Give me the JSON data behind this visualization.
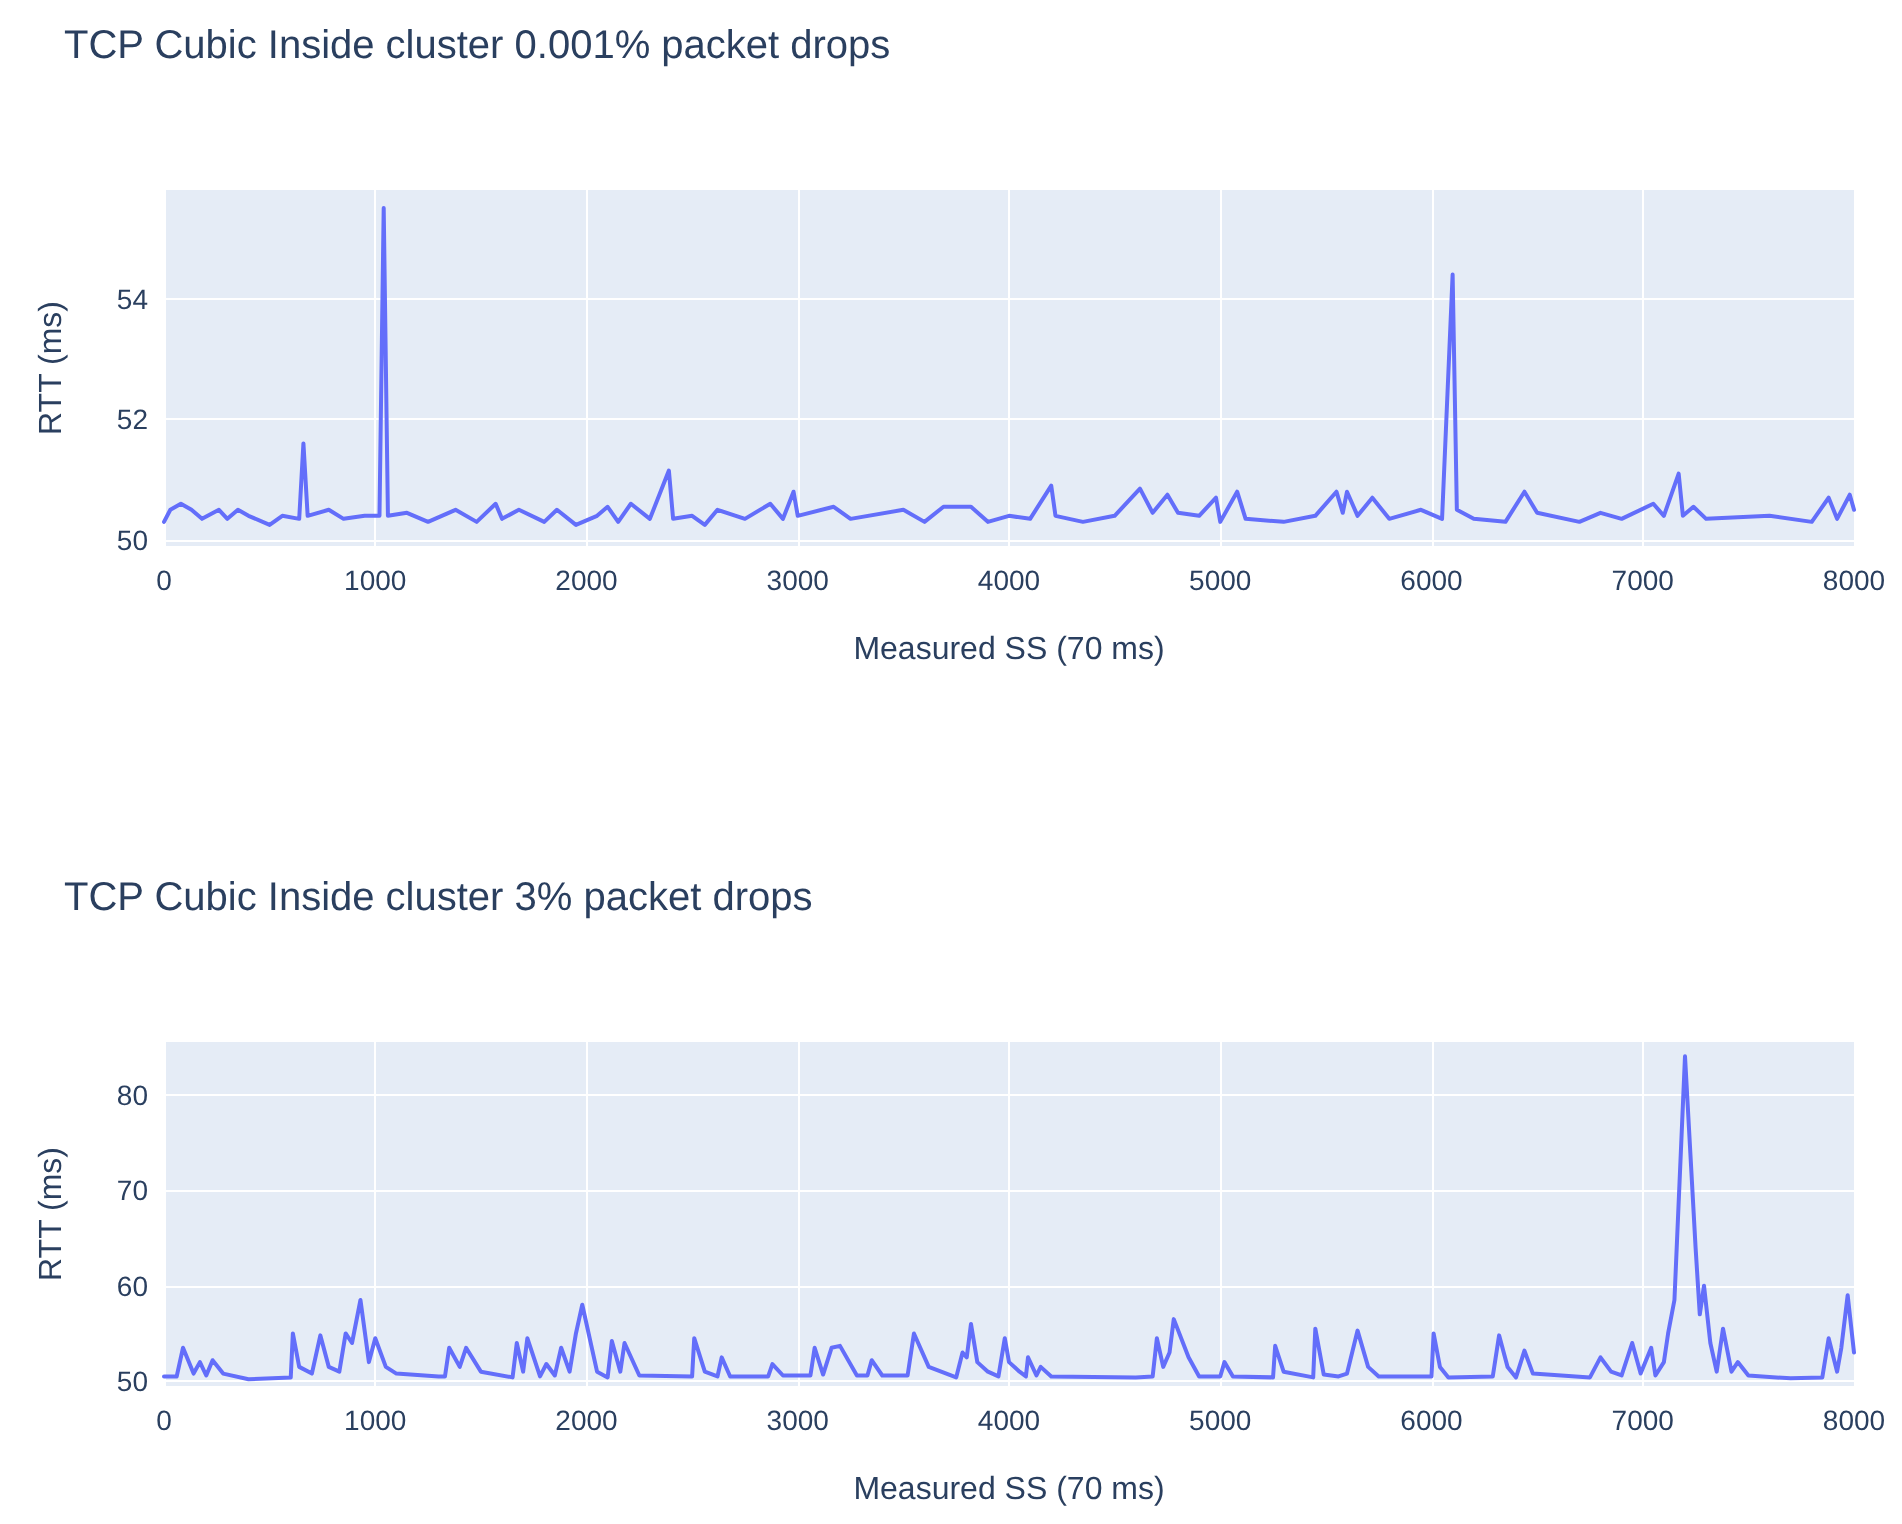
{
  "chart_data": [
    {
      "type": "line",
      "title": "TCP Cubic Inside cluster 0.001% packet drops",
      "xlabel": "Measured SS (70 ms)",
      "ylabel": "RTT (ms)",
      "xlim": [
        0,
        8000
      ],
      "xticks": [
        0,
        1000,
        2000,
        3000,
        4000,
        5000,
        6000,
        7000,
        8000
      ],
      "ylim": [
        49.9,
        55.8
      ],
      "yticks": [
        50,
        52,
        54
      ],
      "grid": true,
      "marker": "none",
      "line_style": "solid",
      "x": [
        0,
        30,
        80,
        130,
        180,
        260,
        300,
        350,
        400,
        500,
        560,
        640,
        660,
        680,
        780,
        850,
        950,
        1020,
        1040,
        1060,
        1150,
        1250,
        1380,
        1480,
        1570,
        1600,
        1680,
        1800,
        1860,
        1950,
        2050,
        2100,
        2150,
        2210,
        2300,
        2390,
        2410,
        2500,
        2560,
        2620,
        2750,
        2870,
        2930,
        2980,
        3000,
        3170,
        3250,
        3500,
        3600,
        3690,
        3820,
        3900,
        4000,
        4100,
        4200,
        4220,
        4350,
        4500,
        4620,
        4680,
        4750,
        4800,
        4900,
        4980,
        5000,
        5080,
        5120,
        5300,
        5450,
        5550,
        5580,
        5600,
        5650,
        5720,
        5800,
        5950,
        6050,
        6100,
        6120,
        6200,
        6350,
        6440,
        6500,
        6700,
        6800,
        6900,
        7050,
        7100,
        7170,
        7190,
        7240,
        7300,
        7600,
        7800,
        7880,
        7920,
        7980,
        8000
      ],
      "series": [
        {
          "color": "#636efa",
          "values": [
            50.3,
            50.5,
            50.6,
            50.5,
            50.35,
            50.5,
            50.35,
            50.5,
            50.4,
            50.25,
            50.4,
            50.35,
            51.6,
            50.4,
            50.5,
            50.35,
            50.4,
            50.4,
            55.5,
            50.4,
            50.45,
            50.3,
            50.5,
            50.3,
            50.6,
            50.35,
            50.5,
            50.3,
            50.5,
            50.25,
            50.4,
            50.55,
            50.3,
            50.6,
            50.35,
            51.15,
            50.35,
            50.4,
            50.25,
            50.5,
            50.35,
            50.6,
            50.35,
            50.8,
            50.4,
            50.55,
            50.35,
            50.5,
            50.3,
            50.55,
            50.55,
            50.3,
            50.4,
            50.35,
            50.9,
            50.4,
            50.3,
            50.4,
            50.85,
            50.45,
            50.75,
            50.45,
            50.4,
            50.7,
            50.3,
            50.8,
            50.35,
            50.3,
            50.4,
            50.8,
            50.45,
            50.8,
            50.4,
            50.7,
            50.35,
            50.5,
            50.35,
            54.4,
            50.5,
            50.35,
            50.3,
            50.8,
            50.45,
            50.3,
            50.45,
            50.35,
            50.6,
            50.4,
            51.1,
            50.4,
            50.55,
            50.35,
            50.4,
            50.3,
            50.7,
            50.35,
            50.75,
            50.5
          ]
        }
      ]
    },
    {
      "type": "line",
      "title": "TCP Cubic Inside cluster 3% packet drops",
      "xlabel": "Measured SS (70 ms)",
      "ylabel": "RTT (ms)",
      "xlim": [
        0,
        8000
      ],
      "xticks": [
        0,
        1000,
        2000,
        3000,
        4000,
        5000,
        6000,
        7000,
        8000
      ],
      "ylim": [
        49.5,
        85.5
      ],
      "yticks": [
        50,
        60,
        70,
        80
      ],
      "grid": true,
      "marker": "none",
      "line_style": "solid",
      "x": [
        0,
        60,
        90,
        140,
        170,
        200,
        230,
        280,
        400,
        600,
        610,
        640,
        700,
        740,
        780,
        830,
        860,
        890,
        930,
        970,
        1000,
        1050,
        1100,
        1300,
        1330,
        1350,
        1400,
        1430,
        1500,
        1650,
        1670,
        1700,
        1720,
        1780,
        1810,
        1850,
        1880,
        1920,
        1950,
        1980,
        2050,
        2100,
        2120,
        2160,
        2180,
        2250,
        2500,
        2510,
        2560,
        2620,
        2640,
        2680,
        2860,
        2880,
        2930,
        3060,
        3080,
        3120,
        3160,
        3200,
        3280,
        3330,
        3350,
        3400,
        3520,
        3550,
        3620,
        3750,
        3780,
        3800,
        3820,
        3850,
        3900,
        3950,
        3980,
        4000,
        4050,
        4080,
        4090,
        4130,
        4150,
        4200,
        4600,
        4680,
        4700,
        4730,
        4760,
        4780,
        4850,
        4900,
        5000,
        5020,
        5060,
        5250,
        5260,
        5300,
        5440,
        5450,
        5490,
        5560,
        5600,
        5650,
        5700,
        5750,
        6000,
        6010,
        6040,
        6080,
        6290,
        6320,
        6360,
        6400,
        6440,
        6480,
        6750,
        6800,
        6850,
        6900,
        6950,
        6990,
        7040,
        7060,
        7100,
        7120,
        7150,
        7200,
        7250,
        7270,
        7290,
        7320,
        7350,
        7380,
        7420,
        7450,
        7500,
        7700,
        7850,
        7880,
        7920,
        7940,
        7970,
        8000
      ],
      "series": [
        {
          "color": "#636efa",
          "values": [
            50.5,
            50.5,
            53.5,
            50.8,
            52,
            50.6,
            52.2,
            50.8,
            50.2,
            50.4,
            55,
            51.5,
            50.8,
            54.8,
            51.5,
            51,
            55,
            54,
            58.5,
            52,
            54.5,
            51.5,
            50.8,
            50.5,
            50.5,
            53.5,
            51.5,
            53.5,
            51,
            50.4,
            54,
            51,
            54.5,
            50.5,
            51.8,
            50.6,
            53.5,
            51,
            55,
            58,
            51,
            50.4,
            54.2,
            51,
            54,
            50.6,
            50.5,
            54.5,
            51,
            50.5,
            52.5,
            50.5,
            50.5,
            51.8,
            50.6,
            50.6,
            53.5,
            50.7,
            53.5,
            53.7,
            50.6,
            50.6,
            52.2,
            50.6,
            50.6,
            55,
            51.5,
            50.4,
            53,
            52.5,
            56,
            52,
            51,
            50.5,
            54.5,
            52,
            51,
            50.5,
            52.5,
            50.6,
            51.5,
            50.5,
            50.4,
            50.5,
            54.5,
            51.5,
            53,
            56.5,
            52.5,
            50.5,
            50.5,
            52,
            50.5,
            50.4,
            53.7,
            51,
            50.4,
            55.5,
            50.7,
            50.5,
            50.8,
            55.3,
            51.5,
            50.5,
            50.5,
            55,
            51.5,
            50.4,
            50.5,
            54.8,
            51.5,
            50.4,
            53.2,
            50.8,
            50.4,
            52.5,
            51,
            50.6,
            54,
            50.8,
            53.5,
            50.6,
            52,
            55,
            58.5,
            84,
            64,
            57,
            60,
            54,
            51,
            55.5,
            51,
            52,
            50.6,
            50.3,
            50.4,
            54.5,
            51,
            53.5,
            59,
            53
          ]
        }
      ]
    }
  ]
}
